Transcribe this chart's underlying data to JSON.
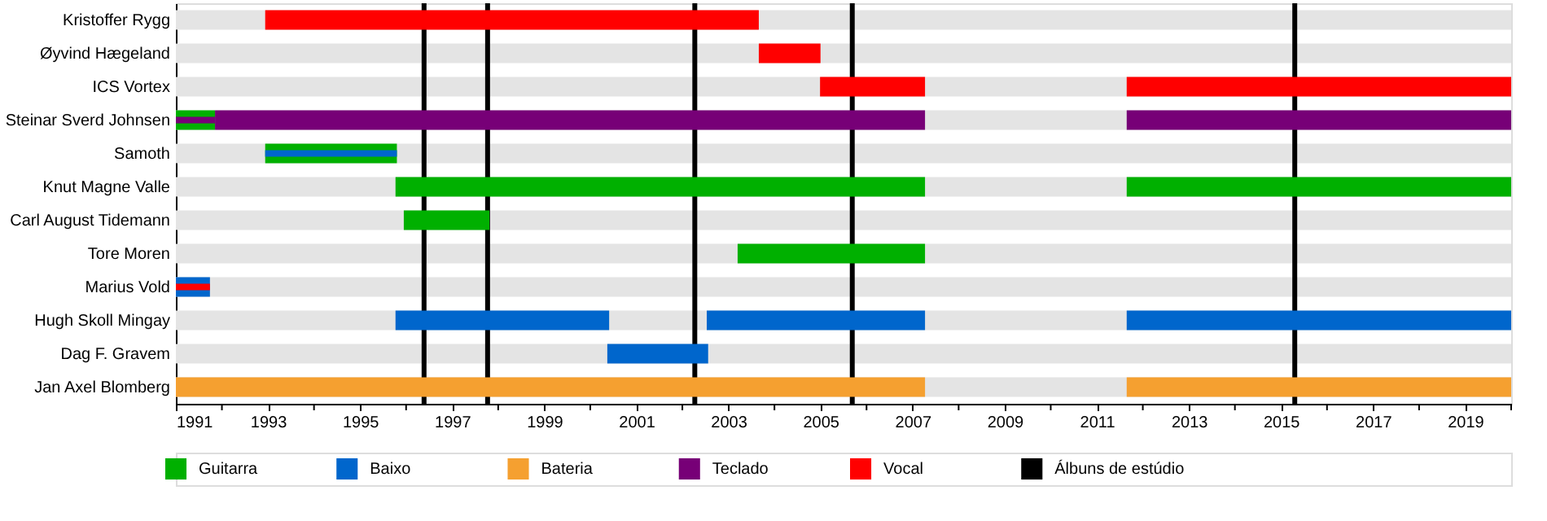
{
  "chart_data": {
    "type": "bar",
    "orientation": "horizontal",
    "legend": "bottom",
    "grid": false,
    "categories": [
      "Kristoffer Rygg",
      "Øyvind Hægeland",
      "ICS Vortex",
      "Steinar Sverd Johnsen",
      "Samoth",
      "Knut Magne Valle",
      "Carl August Tidemann",
      "Tore Moren",
      "Marius Vold",
      "Hugh Skoll Mingay",
      "Dag F. Gravem",
      "Jan Axel Blomberg"
    ],
    "xlim": [
      1991,
      2020
    ],
    "xticks": [
      1991,
      {
        "value": 1992,
        "label": null
      },
      1993,
      {
        "value": 1994,
        "label": null
      },
      1995,
      {
        "value": 1996,
        "label": null
      },
      1997,
      {
        "value": 1998,
        "label": null
      },
      1999,
      {
        "value": 2000,
        "label": null
      },
      2001,
      {
        "value": 2002,
        "label": null
      },
      2003,
      {
        "value": 2004,
        "label": null
      },
      2005,
      {
        "value": 2006,
        "label": null
      },
      2007,
      {
        "value": 2008,
        "label": null
      },
      2009,
      {
        "value": 2010,
        "label": null
      },
      2011,
      {
        "value": 2012,
        "label": null
      },
      2013,
      {
        "value": 2014,
        "label": null
      },
      2015,
      {
        "value": 2016,
        "label": null
      },
      2017,
      {
        "value": 2018,
        "label": null
      },
      2019,
      {
        "value": 2020,
        "label": null
      }
    ],
    "series": [
      {
        "name": "Guitarra",
        "color": "#00b000",
        "base": [
          null,
          null,
          null,
          1991,
          1992.94,
          1995.77,
          1995.95,
          2003.2,
          null,
          null,
          null,
          null
        ],
        "values": [
          null,
          null,
          null,
          0.85,
          2.86,
          11.5,
          1.86,
          4.07,
          null,
          null,
          null,
          null
        ]
      },
      {
        "name": "Baixo",
        "color": "#0066cc",
        "base": [
          null,
          null,
          null,
          null,
          1992.94,
          null,
          null,
          null,
          1991,
          1995.77,
          2000.37,
          null
        ],
        "values": [
          null,
          null,
          null,
          null,
          2.86,
          null,
          null,
          null,
          0.74,
          4.64,
          2.19,
          null
        ]
      },
      {
        "name": "Bateria",
        "color": "#f5a030",
        "base": [
          null,
          null,
          null,
          null,
          null,
          null,
          null,
          null,
          null,
          null,
          null,
          1991
        ],
        "values": [
          null,
          null,
          null,
          null,
          null,
          null,
          null,
          null,
          null,
          null,
          null,
          16.27
        ]
      },
      {
        "name": "Teclado",
        "color": "#770077",
        "base": [
          null,
          null,
          null,
          1991.85,
          null,
          null,
          null,
          null,
          null,
          null,
          null,
          null
        ],
        "values": [
          null,
          null,
          null,
          15.42,
          null,
          null,
          null,
          null,
          null,
          null,
          null,
          null
        ]
      },
      {
        "name": "Vocal",
        "color": "#ff0000",
        "base": [
          1992.94,
          2003.66,
          2004.99,
          null,
          null,
          null,
          null,
          null,
          1991,
          null,
          null,
          null
        ],
        "values": [
          10.72,
          1.34,
          2.28,
          null,
          null,
          null,
          null,
          null,
          0.74,
          null,
          null,
          null
        ]
      },
      {
        "color": "#00b000",
        "base": [
          null,
          null,
          null,
          null,
          null,
          2011.65,
          null,
          null,
          null,
          null,
          null,
          null
        ],
        "values": [
          null,
          null,
          null,
          null,
          null,
          8.35,
          null,
          null,
          null,
          null,
          null,
          null
        ]
      },
      {
        "color": "#0066cc",
        "base": [
          null,
          null,
          null,
          null,
          null,
          null,
          null,
          null,
          null,
          2002.53,
          null,
          null
        ],
        "values": [
          null,
          null,
          null,
          null,
          null,
          null,
          null,
          null,
          null,
          4.74,
          null,
          null
        ]
      },
      {
        "color": "#0066cc",
        "base": [
          null,
          null,
          null,
          null,
          null,
          null,
          null,
          null,
          null,
          2011.65,
          null,
          null
        ],
        "values": [
          null,
          null,
          null,
          null,
          null,
          null,
          null,
          null,
          null,
          8.35,
          null,
          null
        ]
      },
      {
        "color": "#f5a030",
        "base": [
          null,
          null,
          null,
          null,
          null,
          null,
          null,
          null,
          null,
          null,
          null,
          2011.65
        ],
        "values": [
          null,
          null,
          null,
          null,
          null,
          null,
          null,
          null,
          null,
          null,
          null,
          8.35
        ]
      },
      {
        "color": "#770077",
        "base": [
          null,
          null,
          null,
          2011.65,
          null,
          null,
          null,
          null,
          null,
          null,
          null,
          null
        ],
        "values": [
          null,
          null,
          null,
          8.35,
          null,
          null,
          null,
          null,
          null,
          null,
          null,
          null
        ]
      },
      {
        "color": "#770077",
        "base": [
          null,
          null,
          null,
          1991,
          null,
          null,
          null,
          null,
          null,
          null,
          null,
          null
        ],
        "values": [
          null,
          null,
          null,
          0.85,
          null,
          null,
          null,
          null,
          null,
          null,
          null,
          null
        ]
      },
      {
        "color": "#ff0000",
        "base": [
          null,
          null,
          2011.65,
          null,
          null,
          null,
          null,
          null,
          null,
          null,
          null,
          null
        ],
        "values": [
          null,
          null,
          8.35,
          null,
          null,
          null,
          null,
          null,
          null,
          null,
          null,
          null
        ]
      }
    ],
    "ref_lines": [
      {
        "axis": "x",
        "value": 1996.39,
        "color": "#000000",
        "label": "Álbuns de estúdio"
      },
      {
        "axis": "x",
        "value": 1997.77,
        "color": "#000000"
      },
      {
        "axis": "x",
        "value": 2002.27,
        "color": "#000000"
      },
      {
        "axis": "x",
        "value": 2005.69,
        "color": "#000000"
      },
      {
        "axis": "x",
        "value": 2015.3,
        "color": "#000000"
      }
    ]
  }
}
